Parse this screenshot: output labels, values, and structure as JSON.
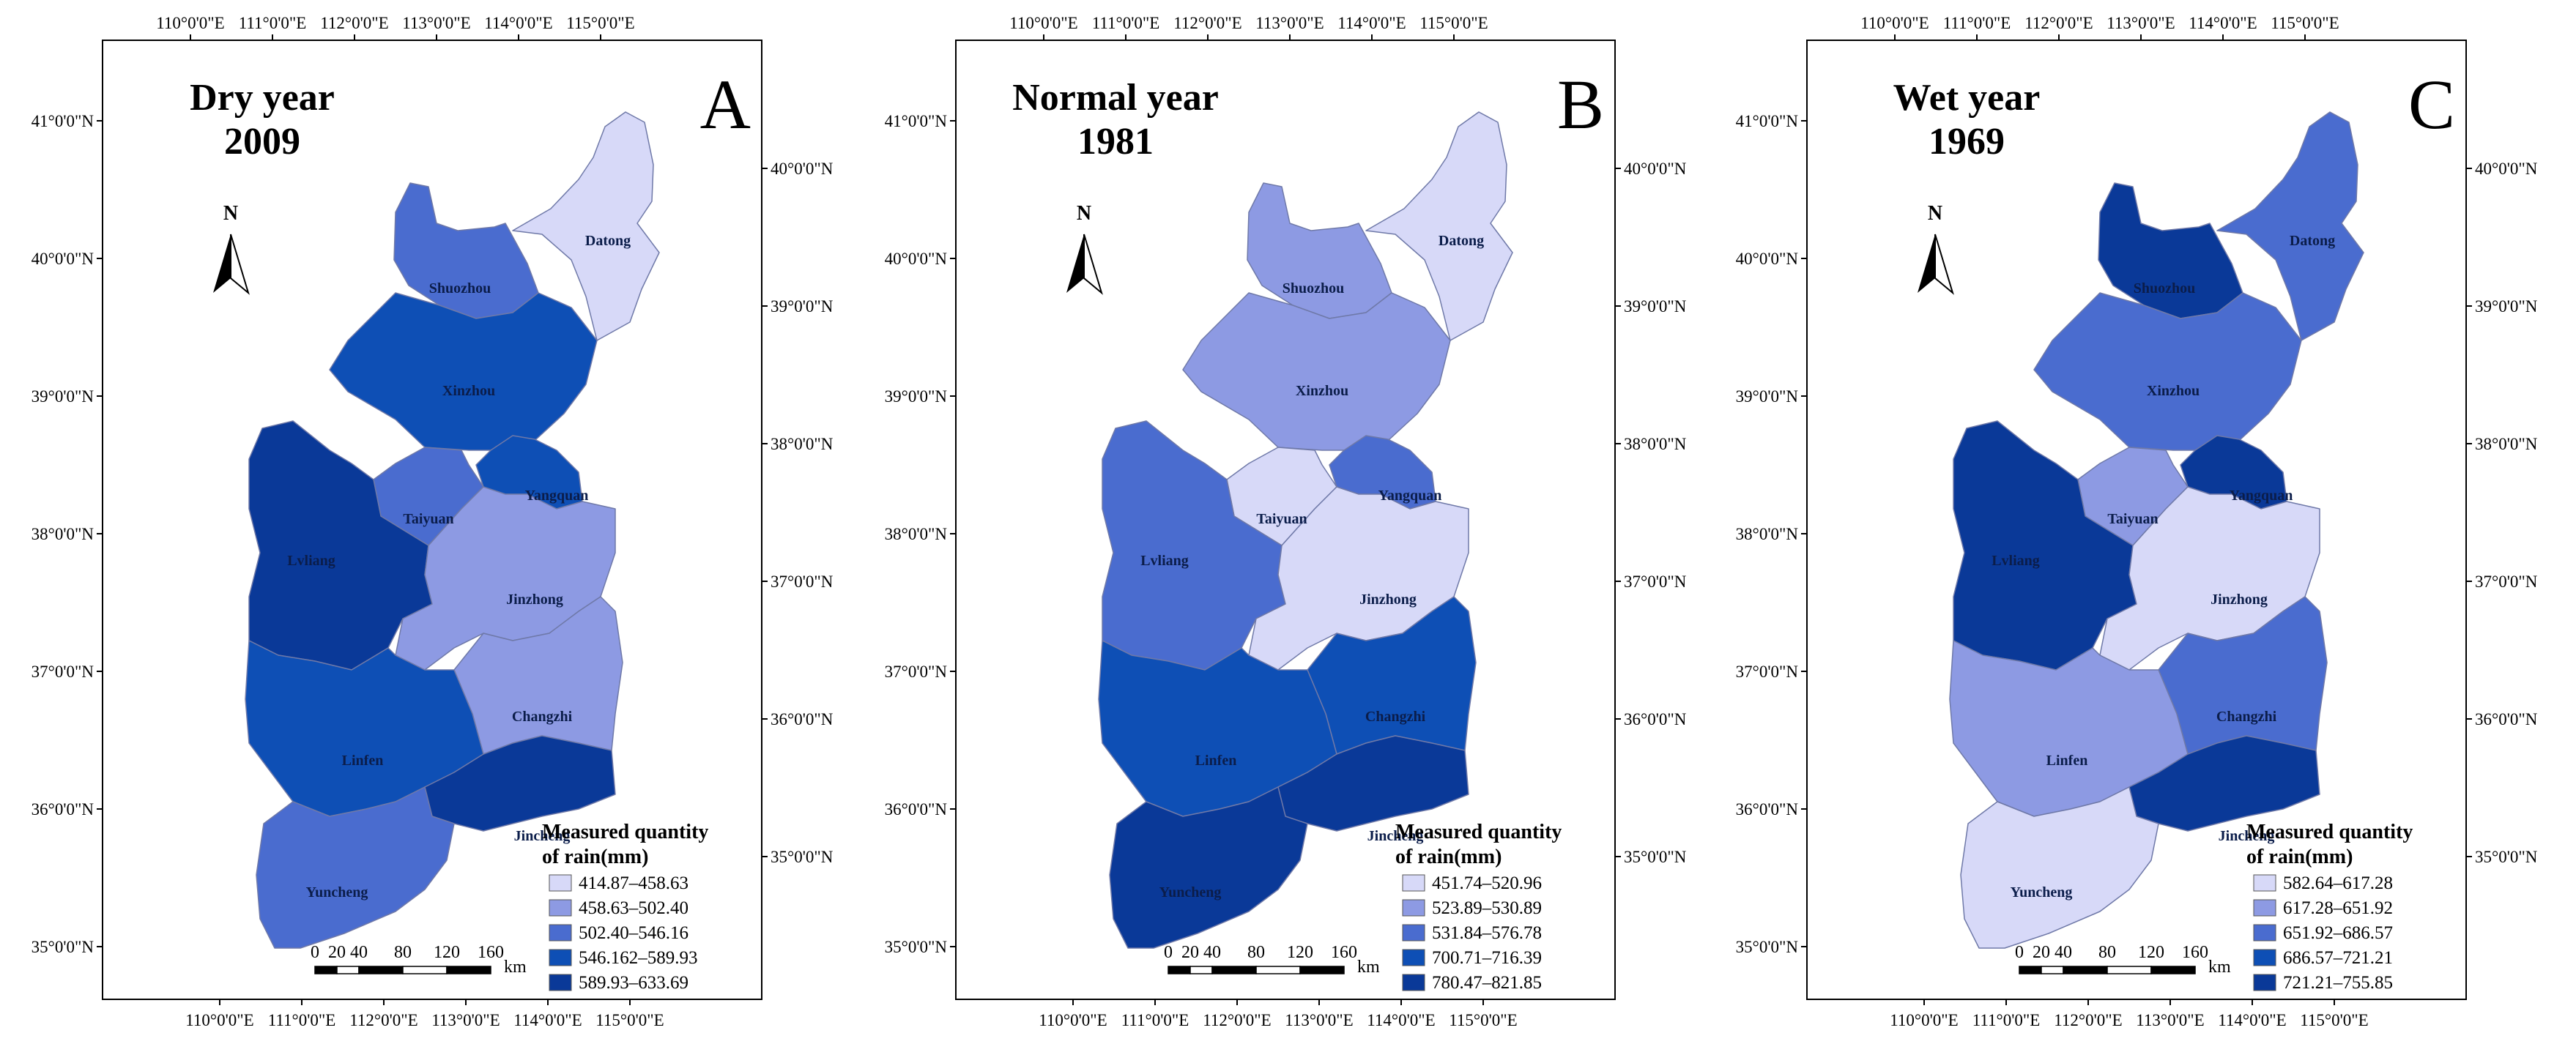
{
  "axes": {
    "top_ticks": [
      "110°0'0\"E",
      "111°0'0\"E",
      "112°0'0\"E",
      "113°0'0\"E",
      "114°0'0\"E",
      "115°0'0\"E"
    ],
    "bottom_ticks": [
      "110°0'0\"E",
      "111°0'0\"E",
      "112°0'0\"E",
      "113°0'0\"E",
      "114°0'0\"E",
      "115°0'0\"E"
    ],
    "left_ticks": [
      "41°0'0\"N",
      "40°0'0\"N",
      "39°0'0\"N",
      "38°0'0\"N",
      "37°0'0\"N",
      "36°0'0\"N",
      "35°0'0\"N"
    ],
    "right_ticks": [
      "40°0'0\"N",
      "39°0'0\"N",
      "38°0'0\"N",
      "37°0'0\"N",
      "36°0'0\"N",
      "35°0'0\"N"
    ]
  },
  "districts": [
    "Datong",
    "Shuozhou",
    "Xinzhou",
    "Yangquan",
    "Taiyuan",
    "Lvliang",
    "Jinzhong",
    "Changzhi",
    "Linfen",
    "Jincheng",
    "Yuncheng"
  ],
  "north_label": "N",
  "scale_bar": {
    "ticks": [
      "0",
      "20",
      "40",
      "80",
      "120",
      "160"
    ],
    "unit": "km"
  },
  "legend_title_line1": "Measured quantity",
  "legend_title_line2": "of rain(mm)",
  "palette": [
    "#d7d9f8",
    "#8d9ae3",
    "#4a6ccf",
    "#0e4fb5",
    "#0a3998"
  ],
  "panels": [
    {
      "letter": "A",
      "title_line1": "Dry year",
      "title_line2": "2009",
      "legend": [
        "414.87–458.63",
        "458.63–502.40",
        "502.40–546.16",
        "546.162–589.93",
        "589.93–633.69"
      ],
      "classes": {
        "Datong": 0,
        "Shuozhou": 2,
        "Xinzhou": 3,
        "Yangquan": 3,
        "Taiyuan": 2,
        "Lvliang": 4,
        "Jinzhong": 1,
        "Changzhi": 1,
        "Linfen": 3,
        "Jincheng": 4,
        "Yuncheng": 2
      }
    },
    {
      "letter": "B",
      "title_line1": "Normal year",
      "title_line2": "1981",
      "legend": [
        "451.74–520.96",
        "523.89–530.89",
        "531.84–576.78",
        "700.71–716.39",
        "780.47–821.85"
      ],
      "classes": {
        "Datong": 0,
        "Shuozhou": 1,
        "Xinzhou": 1,
        "Yangquan": 2,
        "Taiyuan": 0,
        "Lvliang": 2,
        "Jinzhong": 0,
        "Changzhi": 3,
        "Linfen": 3,
        "Jincheng": 4,
        "Yuncheng": 4
      }
    },
    {
      "letter": "C",
      "title_line1": "Wet year",
      "title_line2": "1969",
      "legend": [
        "582.64–617.28",
        "617.28–651.92",
        "651.92–686.57",
        "686.57–721.21",
        "721.21–755.85"
      ],
      "classes": {
        "Datong": 2,
        "Shuozhou": 4,
        "Xinzhou": 2,
        "Yangquan": 4,
        "Taiyuan": 1,
        "Lvliang": 4,
        "Jinzhong": 0,
        "Changzhi": 2,
        "Linfen": 1,
        "Jincheng": 4,
        "Yuncheng": 0
      }
    }
  ]
}
